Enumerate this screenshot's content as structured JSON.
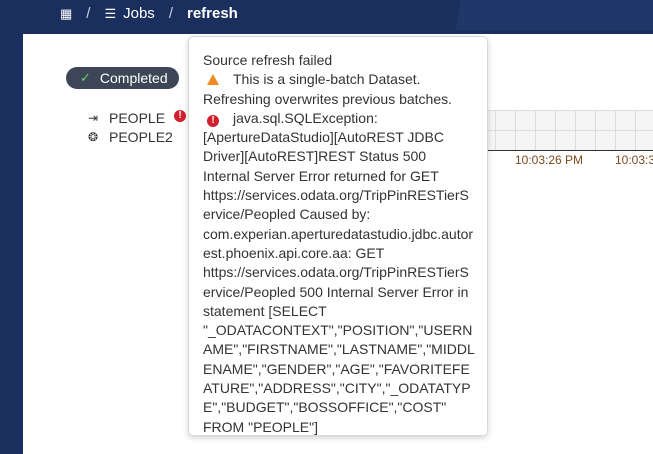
{
  "breadcrumb": {
    "home_icon": "dashboard-icon",
    "jobs_icon": "list-icon",
    "jobs": "Jobs",
    "current": "refresh",
    "separator": "/"
  },
  "status": {
    "label": "Completed",
    "color": "#3c4656"
  },
  "sources": [
    {
      "name": "PEOPLE",
      "icon": "import-icon",
      "has_error": true
    },
    {
      "name": "PEOPLE2",
      "icon": "aperture-icon",
      "has_error": false
    }
  ],
  "timeline": {
    "ticks": [
      "10:03:26 PM",
      "10:03:3"
    ]
  },
  "tooltip": {
    "title": "Source refresh failed",
    "warning": "This is a single-batch Dataset. Refreshing overwrites previous batches.",
    "error": "java.sql.SQLException: [ApertureDataStudio][AutoREST JDBC Driver][AutoREST]REST Status 500 Internal Server Error returned for GET https://services.odata.org/TripPinRESTierService/Peopled Caused by: com.experian.aperturedatastudio.jdbc.autorest.phoenix.api.core.aa: GET https://services.odata.org/TripPinRESTierService/Peopled 500 Internal Server Error in statement [SELECT \"_ODATACONTEXT\",\"POSITION\",\"USERNAME\",\"FIRSTNAME\",\"LASTNAME\",\"MIDDLENAME\",\"GENDER\",\"AGE\",\"FAVORITEFEATURE\",\"ADDRESS\",\"CITY\",\"_ODATATYPE\",\"BUDGET\",\"BOSSOFFICE\",\"COST\" FROM \"PEOPLE\"]",
    "warning_color": "#f08a24",
    "error_color": "#d41f2c"
  }
}
